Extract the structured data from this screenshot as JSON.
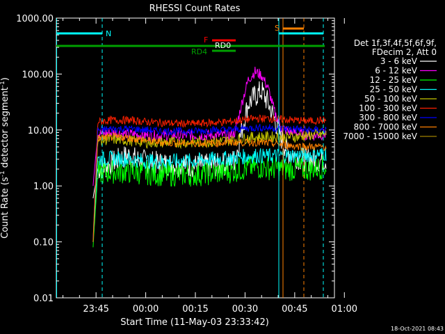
{
  "chart_data": {
    "type": "line",
    "title": "RHESSI Count Rates",
    "xlabel": "Start Time (11-May-03 23:33:42)",
    "ylabel_main": "Count Rate (s",
    "ylabel_sup": "-1",
    "ylabel_rest": " detector segment",
    "ylabel_close": ")",
    "timestamp": "18-Oct-2021 08:43",
    "y_log": true,
    "ylim": [
      0.01,
      1000
    ],
    "y_ticks": [
      {
        "value": 1000,
        "label": "1000.00"
      },
      {
        "value": 100,
        "label": "100.00"
      },
      {
        "value": 10,
        "label": "10.00"
      },
      {
        "value": 1,
        "label": "1.00"
      },
      {
        "value": 0.1,
        "label": "0.10"
      },
      {
        "value": 0.01,
        "label": "0.01"
      }
    ],
    "x_range_min": [
      -12,
      72
    ],
    "x_ticks": [
      {
        "t": 0,
        "label": "23:45"
      },
      {
        "t": 15,
        "label": "00:00"
      },
      {
        "t": 30,
        "label": "00:15"
      },
      {
        "t": 45,
        "label": "00:30"
      },
      {
        "t": 60,
        "label": "00:45"
      },
      {
        "t": 75,
        "label": "01:00"
      }
    ],
    "legend": {
      "header": [
        "Det 1f,3f,4f,5f,6f,9f,",
        "FDecim 2, Att 0"
      ],
      "placement": "right"
    },
    "series": [
      {
        "name": "3 - 6 keV",
        "color": "#ffffff",
        "points": [
          [
            -0.9,
            0.6
          ],
          [
            0.5,
            2.0
          ],
          [
            3,
            2.2
          ],
          [
            5,
            2.6
          ],
          [
            8,
            3.2
          ],
          [
            10,
            3.5
          ],
          [
            12,
            3.0
          ],
          [
            15,
            2.7
          ],
          [
            20,
            2.5
          ],
          [
            25,
            2.4
          ],
          [
            30,
            2.3
          ],
          [
            35,
            2.3
          ],
          [
            40,
            2.5
          ],
          [
            42,
            3.0
          ],
          [
            44,
            10
          ],
          [
            46,
            30
          ],
          [
            48,
            40
          ],
          [
            50,
            50
          ],
          [
            52,
            30
          ],
          [
            54,
            15
          ],
          [
            56,
            7
          ],
          [
            58,
            4
          ],
          [
            60,
            3.5
          ],
          [
            62,
            3.0
          ],
          [
            64,
            3.0
          ],
          [
            66,
            2.8
          ],
          [
            68,
            2.9
          ],
          [
            69.5,
            3.0
          ]
        ]
      },
      {
        "name": "6 - 12 keV",
        "color": "#ff00ff",
        "points": [
          [
            -0.9,
            1.0
          ],
          [
            0.5,
            8.5
          ],
          [
            5,
            9.0
          ],
          [
            10,
            8.5
          ],
          [
            15,
            8.0
          ],
          [
            20,
            8.0
          ],
          [
            25,
            8.0
          ],
          [
            30,
            8.0
          ],
          [
            35,
            8.0
          ],
          [
            40,
            8.0
          ],
          [
            42,
            9
          ],
          [
            44,
            30
          ],
          [
            46,
            80
          ],
          [
            48,
            110
          ],
          [
            50,
            95
          ],
          [
            52,
            55
          ],
          [
            54,
            20
          ],
          [
            56,
            11
          ],
          [
            58,
            9.5
          ],
          [
            62,
            8.5
          ],
          [
            66,
            8.0
          ],
          [
            69.5,
            8.5
          ]
        ]
      },
      {
        "name": "12 - 25 keV",
        "color": "#00ff00",
        "points": [
          [
            -0.9,
            0.08
          ],
          [
            0.5,
            1.7
          ],
          [
            5,
            1.8
          ],
          [
            10,
            1.8
          ],
          [
            15,
            1.7
          ],
          [
            20,
            1.6
          ],
          [
            25,
            1.6
          ],
          [
            30,
            1.6
          ],
          [
            35,
            1.7
          ],
          [
            40,
            1.8
          ],
          [
            44,
            2.0
          ],
          [
            48,
            2.2
          ],
          [
            52,
            2.1
          ],
          [
            56,
            2.0
          ],
          [
            60,
            2.0
          ],
          [
            64,
            2.0
          ],
          [
            69.5,
            2.2
          ]
        ]
      },
      {
        "name": "25 - 50 keV",
        "color": "#00ffff",
        "points": [
          [
            -0.9,
            0.1
          ],
          [
            0.5,
            3.0
          ],
          [
            5,
            3.1
          ],
          [
            10,
            3.0
          ],
          [
            15,
            2.8
          ],
          [
            20,
            2.7
          ],
          [
            25,
            2.8
          ],
          [
            30,
            2.8
          ],
          [
            35,
            3.0
          ],
          [
            40,
            3.1
          ],
          [
            44,
            3.3
          ],
          [
            48,
            3.5
          ],
          [
            52,
            3.4
          ],
          [
            56,
            3.5
          ],
          [
            60,
            3.5
          ],
          [
            64,
            3.6
          ],
          [
            69.5,
            3.8
          ]
        ]
      },
      {
        "name": "50 - 100 keV",
        "color": "#c8c800",
        "points": [
          [
            -0.9,
            0.1
          ],
          [
            0.5,
            6.5
          ],
          [
            5,
            6.8
          ],
          [
            10,
            6.5
          ],
          [
            15,
            6.0
          ],
          [
            20,
            6.0
          ],
          [
            25,
            6.0
          ],
          [
            30,
            6.0
          ],
          [
            35,
            6.2
          ],
          [
            40,
            6.5
          ],
          [
            44,
            7.0
          ],
          [
            48,
            7.5
          ],
          [
            52,
            7.5
          ],
          [
            56,
            7.5
          ],
          [
            60,
            7.5
          ],
          [
            64,
            8.0
          ],
          [
            69.5,
            8.5
          ]
        ]
      },
      {
        "name": "100 - 300 keV",
        "color": "#ff2000",
        "points": [
          [
            -0.9,
            0.1
          ],
          [
            0.5,
            14
          ],
          [
            5,
            15
          ],
          [
            10,
            15
          ],
          [
            15,
            14
          ],
          [
            20,
            13.5
          ],
          [
            25,
            13
          ],
          [
            30,
            13
          ],
          [
            35,
            13.5
          ],
          [
            40,
            14
          ],
          [
            44,
            15
          ],
          [
            48,
            16
          ],
          [
            52,
            16
          ],
          [
            56,
            15.5
          ],
          [
            60,
            15
          ],
          [
            64,
            14.5
          ],
          [
            69.5,
            15
          ]
        ]
      },
      {
        "name": "300 - 800 keV",
        "color": "#0000ff",
        "points": [
          [
            -0.9,
            0.1
          ],
          [
            0.5,
            10
          ],
          [
            5,
            10.5
          ],
          [
            10,
            10.5
          ],
          [
            15,
            10
          ],
          [
            20,
            9.5
          ],
          [
            25,
            9.5
          ],
          [
            30,
            9.5
          ],
          [
            35,
            10
          ],
          [
            40,
            10
          ],
          [
            44,
            10.5
          ],
          [
            48,
            11
          ],
          [
            52,
            11
          ],
          [
            56,
            10.5
          ],
          [
            60,
            10.5
          ],
          [
            64,
            10
          ],
          [
            69.5,
            10
          ]
        ]
      },
      {
        "name": "800 - 7000 keV",
        "color": "#ff8000",
        "points": [
          [
            -0.9,
            0.1
          ],
          [
            0.5,
            7
          ],
          [
            5,
            7.5
          ],
          [
            10,
            7.2
          ],
          [
            15,
            6.5
          ],
          [
            20,
            6.0
          ],
          [
            25,
            5.8
          ],
          [
            30,
            5.8
          ],
          [
            35,
            5.8
          ],
          [
            40,
            6.0
          ],
          [
            44,
            6.0
          ],
          [
            48,
            6.0
          ],
          [
            52,
            5.8
          ],
          [
            56,
            5.5
          ],
          [
            60,
            5.2
          ],
          [
            64,
            5.0
          ],
          [
            69.5,
            5.0
          ]
        ]
      },
      {
        "name": "7000 - 15000 keV",
        "color": "#a08000",
        "points": []
      }
    ],
    "annotations": {
      "n_flag": {
        "label": "N",
        "color": "#00ffff"
      },
      "s_flag": {
        "label": "S",
        "color": "#ff8000"
      },
      "f_flag": {
        "label": "F",
        "color": "#ff0000"
      },
      "rd0_label": "RD0",
      "rd4_label": "RD4",
      "attenuator_bar_color": "#00a000"
    }
  }
}
